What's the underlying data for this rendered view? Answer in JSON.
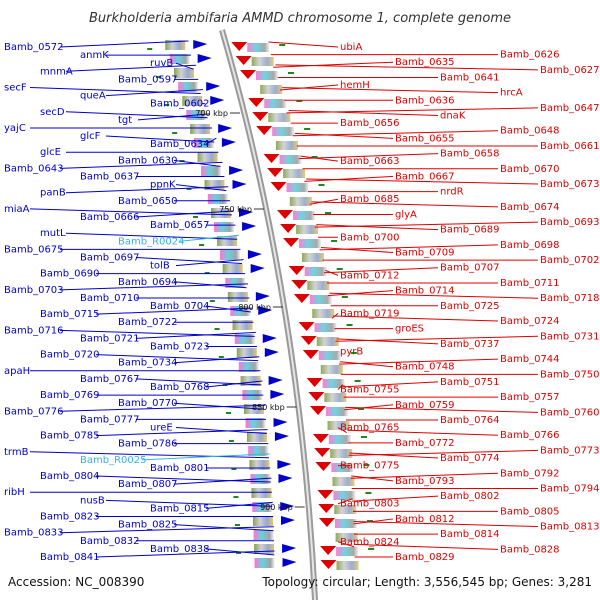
{
  "title": "Burkholderia ambifaria AMMD chromosome 1, complete genome",
  "accession": "Accession: NC_008390",
  "topology": "Topology: circular; Length: 3,556,545 bp; Genes: 3,281",
  "colors": {
    "left_strand": "#0000cc",
    "right_strand": "#dd0000",
    "rna": "#33b5e5",
    "backbone": "#999999",
    "green_marker": "#1a8a1a"
  },
  "scale_ticks": [
    "700 kbp",
    "750 kbp",
    "800 kbp",
    "850 kbp",
    "900 kbp"
  ],
  "left_labels": [
    {
      "text": "Bamb_0572",
      "color": "blue"
    },
    {
      "text": "anmK",
      "color": "blue"
    },
    {
      "text": "ruvB",
      "color": "blue"
    },
    {
      "text": "mnmA",
      "color": "blue"
    },
    {
      "text": "Bamb_0597",
      "color": "blue"
    },
    {
      "text": "secF",
      "color": "blue"
    },
    {
      "text": "queA",
      "color": "blue"
    },
    {
      "text": "Bamb_0602",
      "color": "blue"
    },
    {
      "text": "secD",
      "color": "blue"
    },
    {
      "text": "tgt",
      "color": "blue"
    },
    {
      "text": "yajC",
      "color": "blue"
    },
    {
      "text": "glcF",
      "color": "blue"
    },
    {
      "text": "Bamb_0634",
      "color": "blue"
    },
    {
      "text": "glcE",
      "color": "blue"
    },
    {
      "text": "Bamb_0630",
      "color": "blue"
    },
    {
      "text": "Bamb_0643",
      "color": "blue"
    },
    {
      "text": "Bamb_0637",
      "color": "blue"
    },
    {
      "text": "ppnK",
      "color": "blue"
    },
    {
      "text": "panB",
      "color": "blue"
    },
    {
      "text": "Bamb_0650",
      "color": "blue"
    },
    {
      "text": "miaA",
      "color": "blue"
    },
    {
      "text": "Bamb_0666",
      "color": "blue"
    },
    {
      "text": "Bamb_0657",
      "color": "blue"
    },
    {
      "text": "mutL",
      "color": "blue"
    },
    {
      "text": "Bamb_R0024",
      "color": "cyan"
    },
    {
      "text": "Bamb_0675",
      "color": "blue"
    },
    {
      "text": "Bamb_0697",
      "color": "blue"
    },
    {
      "text": "tolB",
      "color": "blue"
    },
    {
      "text": "Bamb_0690",
      "color": "blue"
    },
    {
      "text": "Bamb_0694",
      "color": "blue"
    },
    {
      "text": "Bamb_0703",
      "color": "blue"
    },
    {
      "text": "Bamb_0710",
      "color": "blue"
    },
    {
      "text": "Bamb_0704",
      "color": "blue"
    },
    {
      "text": "Bamb_0715",
      "color": "blue"
    },
    {
      "text": "Bamb_0722",
      "color": "blue"
    },
    {
      "text": "Bamb_0716",
      "color": "blue"
    },
    {
      "text": "Bamb_0721",
      "color": "blue"
    },
    {
      "text": "Bamb_0723",
      "color": "blue"
    },
    {
      "text": "Bamb_0720",
      "color": "blue"
    },
    {
      "text": "Bamb_0734",
      "color": "blue"
    },
    {
      "text": "apaH",
      "color": "blue"
    },
    {
      "text": "Bamb_0767",
      "color": "blue"
    },
    {
      "text": "Bamb_0768",
      "color": "blue"
    },
    {
      "text": "Bamb_0769",
      "color": "blue"
    },
    {
      "text": "Bamb_0770",
      "color": "blue"
    },
    {
      "text": "Bamb_0776",
      "color": "blue"
    },
    {
      "text": "Bamb_0777",
      "color": "blue"
    },
    {
      "text": "ureE",
      "color": "blue"
    },
    {
      "text": "Bamb_0785",
      "color": "blue"
    },
    {
      "text": "Bamb_0786",
      "color": "blue"
    },
    {
      "text": "trmB",
      "color": "blue"
    },
    {
      "text": "Bamb_R0025",
      "color": "cyan"
    },
    {
      "text": "Bamb_0801",
      "color": "blue"
    },
    {
      "text": "Bamb_0804",
      "color": "blue"
    },
    {
      "text": "Bamb_0807",
      "color": "blue"
    },
    {
      "text": "ribH",
      "color": "blue"
    },
    {
      "text": "nusB",
      "color": "blue"
    },
    {
      "text": "Bamb_0815",
      "color": "blue"
    },
    {
      "text": "Bamb_0823",
      "color": "blue"
    },
    {
      "text": "Bamb_0825",
      "color": "blue"
    },
    {
      "text": "Bamb_0833",
      "color": "blue"
    },
    {
      "text": "Bamb_0832",
      "color": "blue"
    },
    {
      "text": "Bamb_0838",
      "color": "blue"
    },
    {
      "text": "Bamb_0841",
      "color": "blue"
    }
  ],
  "right_labels": [
    "ubiA",
    "Bamb_0626",
    "Bamb_0635",
    "Bamb_0627",
    "Bamb_0641",
    "hemH",
    "hrcA",
    "Bamb_0636",
    "Bamb_0647",
    "dnaK",
    "Bamb_0656",
    "Bamb_0648",
    "Bamb_0655",
    "Bamb_0661",
    "Bamb_0658",
    "Bamb_0663",
    "Bamb_0670",
    "Bamb_0667",
    "Bamb_0673",
    "nrdR",
    "Bamb_0685",
    "Bamb_0674",
    "glyA",
    "Bamb_0693",
    "Bamb_0689",
    "Bamb_0700",
    "Bamb_0698",
    "Bamb_0709",
    "Bamb_0702",
    "Bamb_0707",
    "Bamb_0712",
    "Bamb_0711",
    "Bamb_0714",
    "Bamb_0718",
    "Bamb_0725",
    "Bamb_0719",
    "Bamb_0724",
    "groES",
    "Bamb_0731",
    "Bamb_0737",
    "pyrB",
    "Bamb_0744",
    "Bamb_0748",
    "Bamb_0750",
    "Bamb_0751",
    "Bamb_0755",
    "Bamb_0757",
    "Bamb_0759",
    "Bamb_0760",
    "Bamb_0764",
    "Bamb_0765",
    "Bamb_0766",
    "Bamb_0772",
    "Bamb_0773",
    "Bamb_0774",
    "Bamb_0775",
    "Bamb_0792",
    "Bamb_0793",
    "Bamb_0794",
    "Bamb_0802",
    "Bamb_0803",
    "Bamb_0805",
    "Bamb_0812",
    "Bamb_0813",
    "Bamb_0814",
    "Bamb_0824",
    "Bamb_0828",
    "Bamb_0829"
  ]
}
